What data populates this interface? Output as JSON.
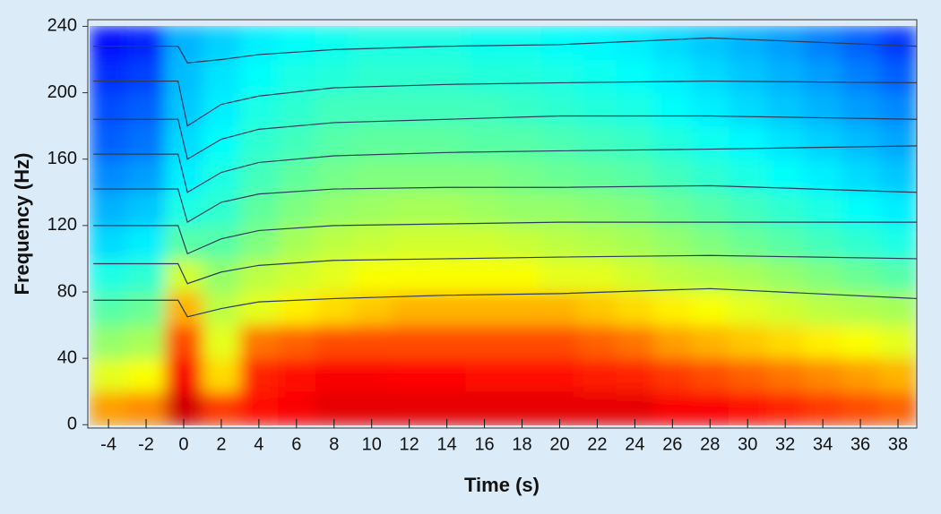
{
  "chart_data": {
    "type": "heatmap",
    "x_label": "Time (s)",
    "y_label": "Frequency (Hz)",
    "xlim": [
      -5.1,
      39
    ],
    "ylim": [
      -2,
      244
    ],
    "xticks": [
      -4,
      -2,
      0,
      2,
      4,
      6,
      8,
      10,
      12,
      14,
      16,
      18,
      20,
      22,
      24,
      26,
      28,
      30,
      32,
      34,
      36,
      38
    ],
    "yticks": [
      0,
      40,
      80,
      120,
      160,
      200,
      240
    ],
    "xbins": [
      -5,
      -3,
      -1,
      1,
      3,
      5,
      7,
      9,
      11,
      13,
      15,
      17,
      19,
      21,
      23,
      25,
      27,
      29,
      31,
      33,
      35,
      37,
      39
    ],
    "ybins": [
      0,
      20,
      40,
      60,
      80,
      100,
      120,
      140,
      160,
      180,
      200,
      220,
      240
    ],
    "colormap": "jet",
    "z": [
      [
        0.72,
        0.74,
        0.92,
        0.82,
        0.86,
        0.88,
        0.9,
        0.9,
        0.9,
        0.9,
        0.9,
        0.9,
        0.9,
        0.9,
        0.9,
        0.88,
        0.88,
        0.86,
        0.84,
        0.82,
        0.8,
        0.78
      ],
      [
        0.6,
        0.62,
        0.88,
        0.66,
        0.84,
        0.86,
        0.88,
        0.88,
        0.87,
        0.87,
        0.86,
        0.86,
        0.86,
        0.85,
        0.84,
        0.82,
        0.8,
        0.78,
        0.76,
        0.74,
        0.72,
        0.7
      ],
      [
        0.52,
        0.54,
        0.8,
        0.6,
        0.76,
        0.78,
        0.8,
        0.8,
        0.8,
        0.8,
        0.8,
        0.8,
        0.8,
        0.78,
        0.76,
        0.72,
        0.7,
        0.68,
        0.66,
        0.64,
        0.62,
        0.6
      ],
      [
        0.46,
        0.48,
        0.7,
        0.56,
        0.6,
        0.64,
        0.66,
        0.68,
        0.7,
        0.7,
        0.7,
        0.7,
        0.7,
        0.68,
        0.66,
        0.64,
        0.62,
        0.6,
        0.58,
        0.56,
        0.55,
        0.54
      ],
      [
        0.4,
        0.42,
        0.58,
        0.52,
        0.56,
        0.58,
        0.6,
        0.62,
        0.62,
        0.62,
        0.62,
        0.62,
        0.6,
        0.6,
        0.58,
        0.56,
        0.55,
        0.54,
        0.52,
        0.5,
        0.48,
        0.46
      ],
      [
        0.34,
        0.36,
        0.46,
        0.46,
        0.5,
        0.54,
        0.56,
        0.57,
        0.58,
        0.58,
        0.58,
        0.57,
        0.56,
        0.55,
        0.54,
        0.52,
        0.5,
        0.48,
        0.46,
        0.44,
        0.42,
        0.4
      ],
      [
        0.3,
        0.32,
        0.4,
        0.42,
        0.47,
        0.5,
        0.52,
        0.53,
        0.54,
        0.54,
        0.53,
        0.52,
        0.52,
        0.51,
        0.5,
        0.48,
        0.46,
        0.44,
        0.42,
        0.4,
        0.38,
        0.36
      ],
      [
        0.26,
        0.28,
        0.36,
        0.4,
        0.44,
        0.47,
        0.49,
        0.5,
        0.5,
        0.5,
        0.5,
        0.49,
        0.48,
        0.47,
        0.46,
        0.44,
        0.42,
        0.4,
        0.38,
        0.36,
        0.34,
        0.32
      ],
      [
        0.22,
        0.24,
        0.34,
        0.38,
        0.42,
        0.44,
        0.46,
        0.47,
        0.47,
        0.47,
        0.46,
        0.46,
        0.45,
        0.44,
        0.43,
        0.41,
        0.39,
        0.37,
        0.35,
        0.33,
        0.31,
        0.29
      ],
      [
        0.2,
        0.22,
        0.32,
        0.36,
        0.4,
        0.42,
        0.44,
        0.44,
        0.44,
        0.44,
        0.44,
        0.43,
        0.42,
        0.41,
        0.4,
        0.38,
        0.36,
        0.34,
        0.32,
        0.3,
        0.28,
        0.26
      ],
      [
        0.17,
        0.19,
        0.31,
        0.35,
        0.38,
        0.4,
        0.41,
        0.42,
        0.42,
        0.42,
        0.41,
        0.41,
        0.4,
        0.39,
        0.38,
        0.36,
        0.34,
        0.32,
        0.3,
        0.28,
        0.25,
        0.22
      ],
      [
        0.14,
        0.16,
        0.3,
        0.33,
        0.36,
        0.38,
        0.39,
        0.4,
        0.4,
        0.4,
        0.39,
        0.39,
        0.38,
        0.37,
        0.36,
        0.34,
        0.32,
        0.3,
        0.28,
        0.25,
        0.22,
        0.18
      ]
    ],
    "x": [
      -4.8,
      -0.3,
      0.2,
      2,
      4,
      8,
      14,
      20,
      28,
      39
    ],
    "series": [
      {
        "color": "#2a3b5c",
        "values": [
          75,
          75,
          65,
          70,
          74,
          76,
          78,
          79,
          82,
          76
        ]
      },
      {
        "color": "#2a3b5c",
        "values": [
          97,
          97,
          85,
          92,
          96,
          99,
          100,
          101,
          102,
          100
        ]
      },
      {
        "color": "#2a3b5c",
        "values": [
          120,
          120,
          103,
          112,
          117,
          120,
          121,
          122,
          122,
          122
        ]
      },
      {
        "color": "#2a3b5c",
        "values": [
          142,
          142,
          122,
          134,
          139,
          142,
          143,
          143,
          144,
          140
        ]
      },
      {
        "color": "#2a3b5c",
        "values": [
          163,
          163,
          140,
          152,
          158,
          162,
          164,
          165,
          166,
          168
        ]
      },
      {
        "color": "#2a3b5c",
        "values": [
          184,
          184,
          160,
          172,
          178,
          182,
          184,
          186,
          186,
          184
        ]
      },
      {
        "color": "#2a3b5c",
        "values": [
          207,
          207,
          180,
          193,
          198,
          203,
          205,
          206,
          207,
          206
        ]
      },
      {
        "color": "#2a3b5c",
        "values": [
          228,
          228,
          218,
          220,
          223,
          226,
          228,
          229,
          233,
          228
        ]
      }
    ]
  }
}
